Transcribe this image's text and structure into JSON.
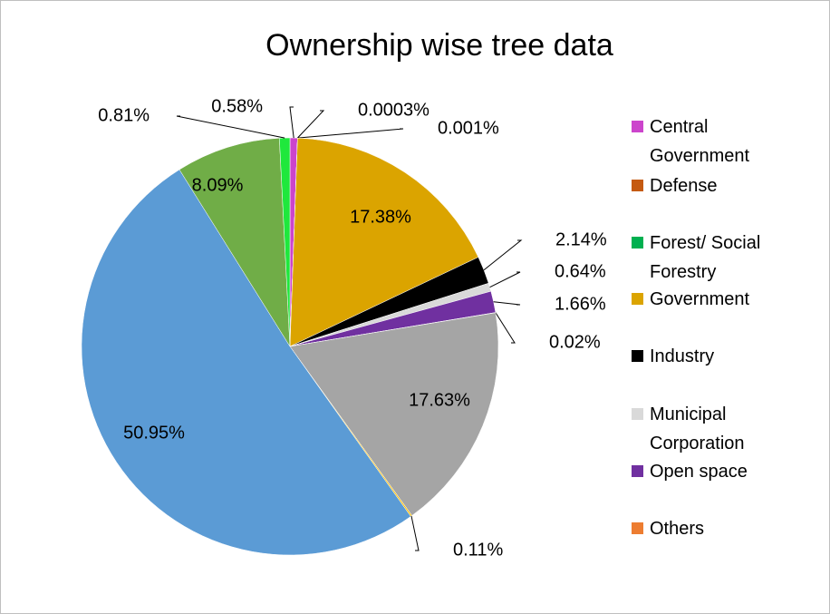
{
  "chart_data": {
    "type": "pie",
    "title": "Ownership wise tree data",
    "categories": [
      "Central Government",
      "Defense",
      "Forest/ Social Forestry",
      "Government",
      "Industry",
      "Municipal Corporation",
      "Open space",
      "Others",
      null,
      null,
      null,
      null,
      null
    ],
    "values": [
      0.58,
      0.0003,
      0.001,
      17.38,
      2.14,
      0.64,
      1.66,
      0.02,
      17.63,
      0.11,
      50.95,
      8.09,
      0.81
    ],
    "value_labels": [
      "0.58%",
      "0.0003%",
      "0.001%",
      "17.38%",
      "2.14%",
      "0.64%",
      "1.66%",
      "0.02%",
      "17.63%",
      "0.11%",
      "50.95%",
      "8.09%",
      "0.81%"
    ],
    "colors": [
      "#cc44cc",
      "#c55a11",
      "#00b050",
      "#dba400",
      "#000000",
      "#d9d9d9",
      "#7030a0",
      "#ed7d31",
      "#a5a5a5",
      "#ffc000",
      "#5b9bd5",
      "#70ad47",
      "#1fe83c"
    ],
    "legend": "right"
  }
}
